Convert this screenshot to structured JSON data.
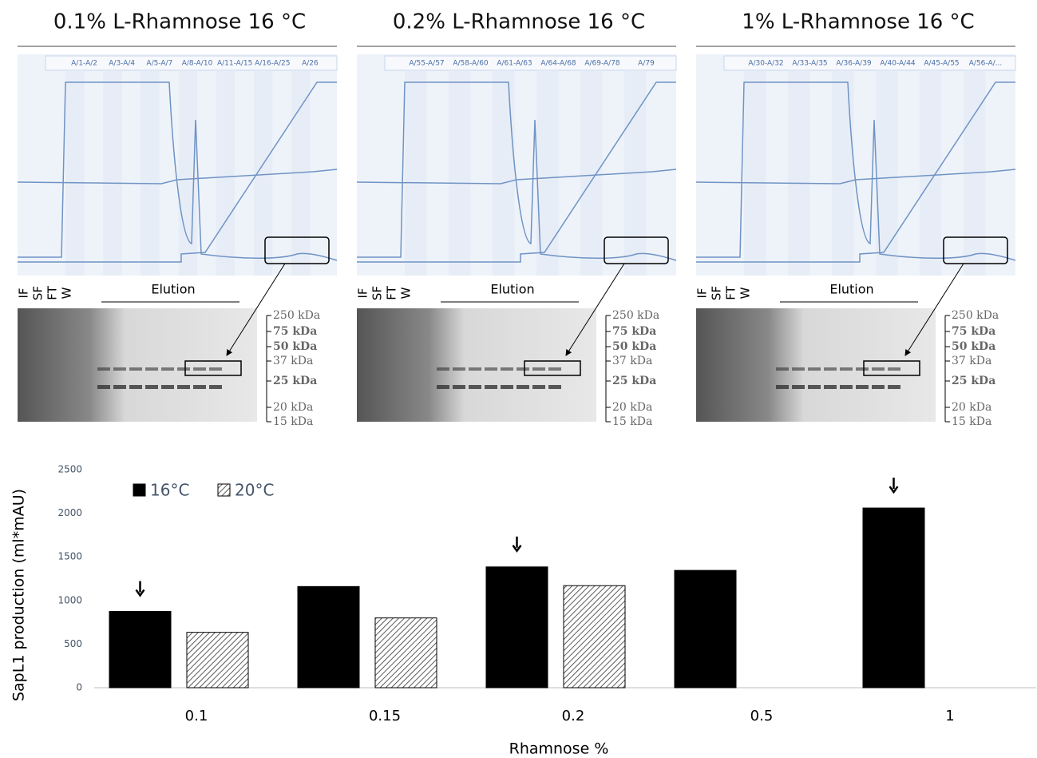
{
  "panels": [
    {
      "title": "0.1% L-Rhamnose 16 °C",
      "fractions": [
        "A/1-A/2",
        "A/3-A/4",
        "A/5-A/7",
        "A/8-A/10",
        "A/11-A/15",
        "A/16-A/25",
        "A/26"
      ],
      "lanes": [
        "IF",
        "SF",
        "FT",
        "W"
      ],
      "elution": "Elution",
      "markers": [
        "250 kDa",
        "75 kDa",
        "50 kDa",
        "37 kDa",
        "25 kDa",
        "20 kDa",
        "15 kDa"
      ]
    },
    {
      "title": "0.2% L-Rhamnose 16 °C",
      "fractions": [
        "A/55-A/57",
        "A/58-A/60",
        "A/61-A/63",
        "A/64-A/68",
        "A/69-A/78",
        "A/79"
      ],
      "lanes": [
        "IF",
        "SF",
        "FT",
        "W"
      ],
      "elution": "Elution",
      "markers": [
        "250 kDa",
        "75 kDa",
        "50 kDa",
        "37 kDa",
        "25 kDa",
        "20 kDa",
        "15 kDa"
      ]
    },
    {
      "title": "1% L-Rhamnose 16 °C",
      "fractions": [
        "A/30-A/32",
        "A/33-A/35",
        "A/36-A/39",
        "A/40-A/44",
        "A/45-A/55",
        "A/56-A/..."
      ],
      "lanes": [
        "IF",
        "SF",
        "FT",
        "W"
      ],
      "elution": "Elution",
      "markers": [
        "250 kDa",
        "75 kDa",
        "50 kDa",
        "37 kDa",
        "25 kDa",
        "20 kDa",
        "15 kDa"
      ]
    }
  ],
  "chart_data": {
    "type": "bar",
    "x_label": "Rhamnose %",
    "y_label": "SapL1 production (ml*mAU)",
    "categories": [
      "0.1",
      "0.15",
      "0.2",
      "0.5",
      "1"
    ],
    "series": [
      {
        "name": "16°C",
        "color": "#000000",
        "values": [
          875,
          1160,
          1385,
          1345,
          2060
        ]
      },
      {
        "name": "20°C",
        "color": "#ffffff",
        "hatch": true,
        "values": [
          635,
          800,
          1170,
          null,
          null
        ]
      }
    ],
    "arrows": [
      true,
      false,
      true,
      false,
      true
    ],
    "ylim": [
      0,
      2500
    ],
    "yticks": [
      0,
      500,
      1000,
      1500,
      2000,
      2500
    ],
    "legend": "top-left"
  }
}
